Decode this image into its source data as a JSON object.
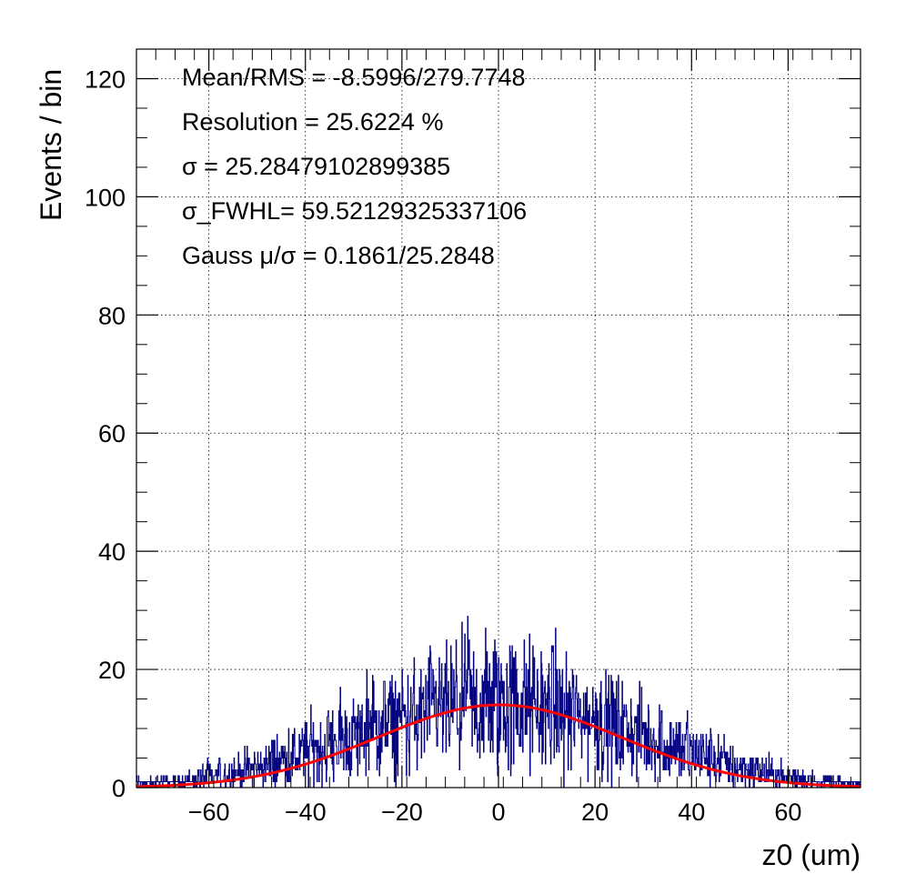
{
  "stats": {
    "mean_rms": "Mean/RMS = -8.5996/279.7748",
    "resolution": "Resolution = 25.6224 %",
    "sigma": "σ = 25.28479102899385",
    "sigma_fwhl": "σ_FWHL= 59.52129325337106",
    "gauss": "Gauss  μ/σ = 0.1861/25.2848"
  },
  "chart_data": {
    "type": "bar",
    "xlabel": "z0 (um)",
    "ylabel": "Events / bin",
    "xlim": [
      -75,
      75
    ],
    "ylim": [
      0,
      125
    ],
    "x_ticks": [
      -60,
      -40,
      -20,
      0,
      20,
      40,
      60
    ],
    "x_tick_labels": [
      "−60",
      "−40",
      "−20",
      "0",
      "20",
      "40",
      "60"
    ],
    "y_ticks": [
      0,
      20,
      40,
      60,
      80,
      100,
      120
    ],
    "y_tick_labels": [
      "0",
      "20",
      "40",
      "60",
      "80",
      "100",
      "120"
    ],
    "grid": true,
    "series": [
      {
        "kind": "histogram",
        "color": "#000080",
        "bin_centers": [
          -72,
          -66,
          -60,
          -54,
          -48,
          -42,
          -36,
          -30,
          -24,
          -18,
          -12,
          -6,
          0,
          6,
          12,
          18,
          24,
          30,
          36,
          42,
          48,
          54,
          60,
          66,
          72
        ],
        "values": [
          0.7,
          1.1,
          1.7,
          2.6,
          3.9,
          5.3,
          6.9,
          8.6,
          10.3,
          11.8,
          13.0,
          13.7,
          14.0,
          13.7,
          13.0,
          11.8,
          10.3,
          8.6,
          6.9,
          5.3,
          3.9,
          2.6,
          1.7,
          1.1,
          0.7
        ],
        "max_values": [
          2,
          3,
          5,
          7,
          10,
          13,
          16,
          19,
          23,
          25,
          27,
          30,
          33,
          30,
          28,
          25,
          23,
          19,
          16,
          13,
          10,
          7,
          5,
          3,
          2
        ]
      },
      {
        "kind": "gauss_fit",
        "color": "#ff0000",
        "mu": 0.1861,
        "sigma": 25.2848,
        "amplitude": 14.0
      }
    ]
  }
}
